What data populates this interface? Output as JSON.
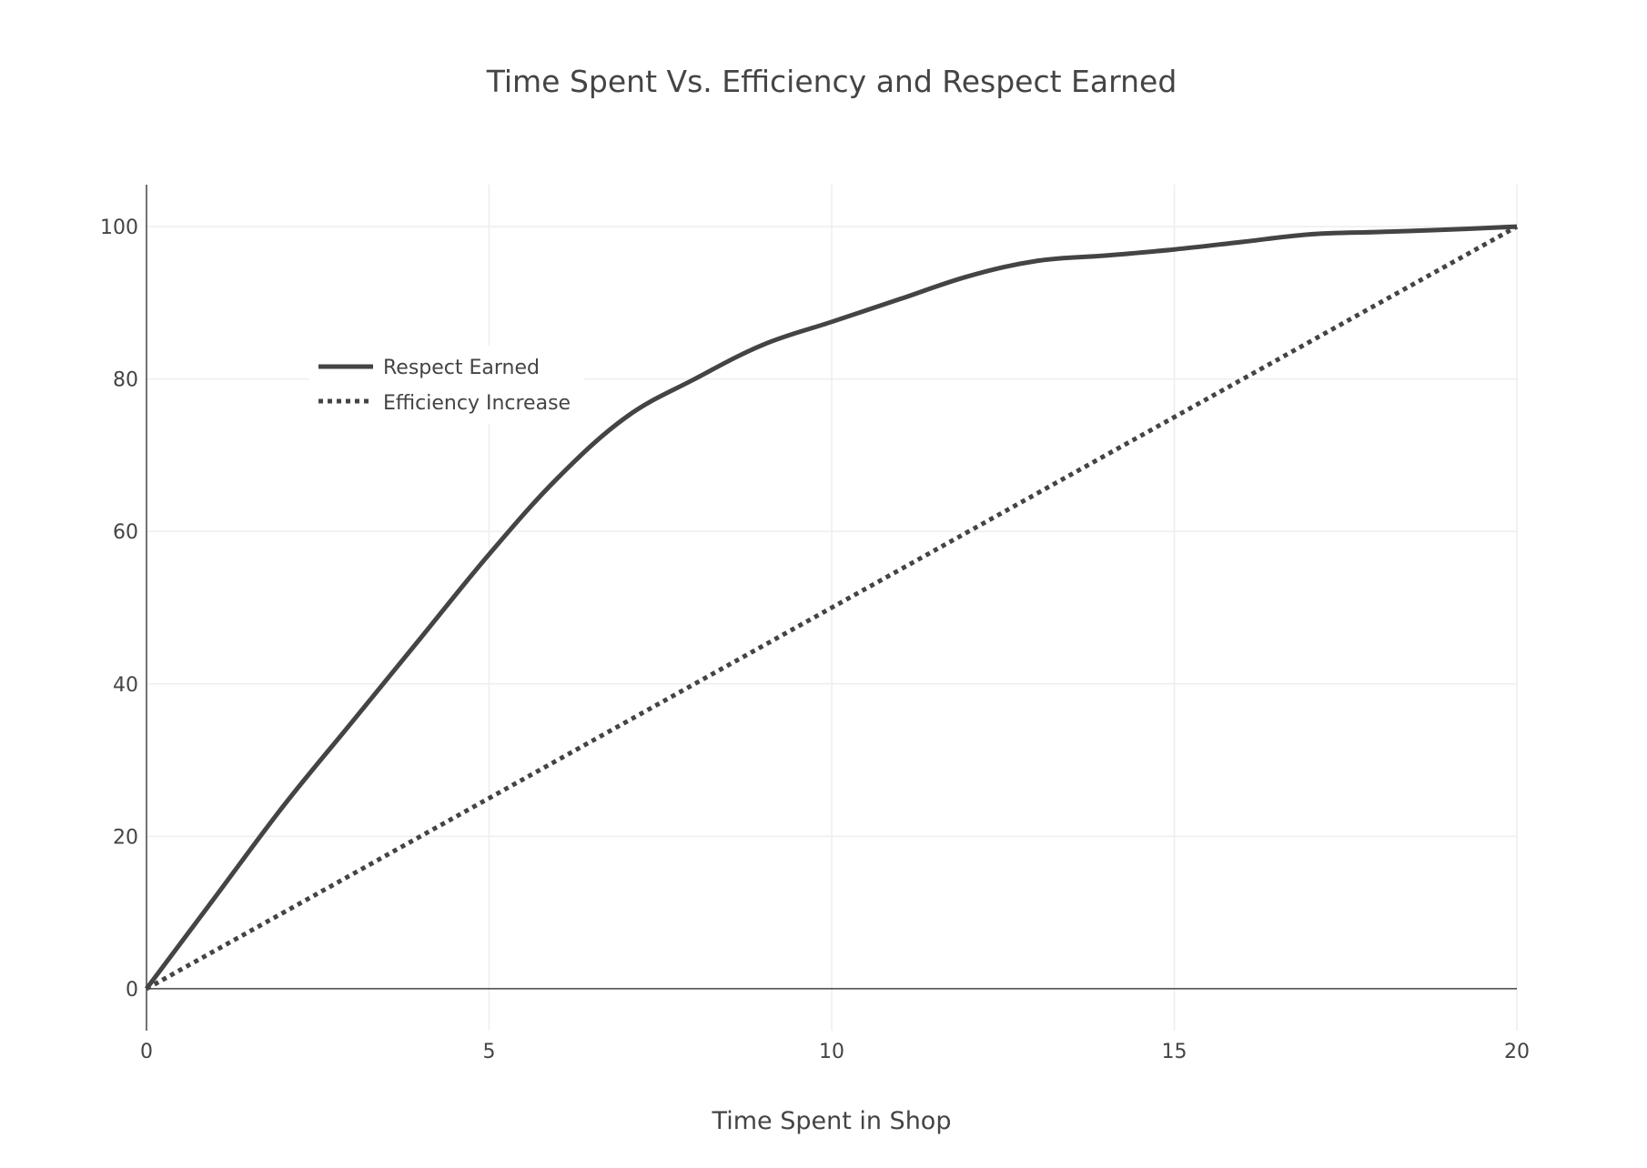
{
  "chart_data": {
    "type": "line",
    "title": "Time Spent Vs. Efficiency and Respect Earned",
    "xlabel": "Time Spent in Shop",
    "ylabel": "",
    "xlim": [
      0,
      20
    ],
    "ylim": [
      -5.5,
      105.5
    ],
    "xticks": [
      0,
      5,
      10,
      15,
      20
    ],
    "yticks": [
      0,
      20,
      40,
      60,
      80,
      100
    ],
    "x": [
      0,
      1,
      2,
      3,
      4,
      5,
      6,
      7,
      8,
      9,
      10,
      11,
      12,
      13,
      14,
      15,
      16,
      17,
      18,
      19,
      20
    ],
    "series": [
      {
        "name": "Respect Earned",
        "style": "solid",
        "values": [
          0,
          12,
          24,
          35,
          46,
          57,
          67,
          75,
          80,
          84.5,
          87.5,
          90.5,
          93.5,
          95.5,
          96.2,
          97,
          98,
          99,
          99.3,
          99.6,
          100
        ]
      },
      {
        "name": "Efficiency Increase",
        "style": "dotted",
        "values": [
          0,
          5,
          10,
          15,
          20,
          25,
          30,
          35,
          40,
          45,
          50,
          55,
          60,
          65,
          70,
          75,
          80,
          85,
          90,
          95,
          100
        ]
      }
    ],
    "grid": true,
    "legend_position": "top-left",
    "colors": {
      "line": "#444444",
      "grid": "#eeeeee",
      "axis": "#444444",
      "background": "#ffffff"
    }
  }
}
